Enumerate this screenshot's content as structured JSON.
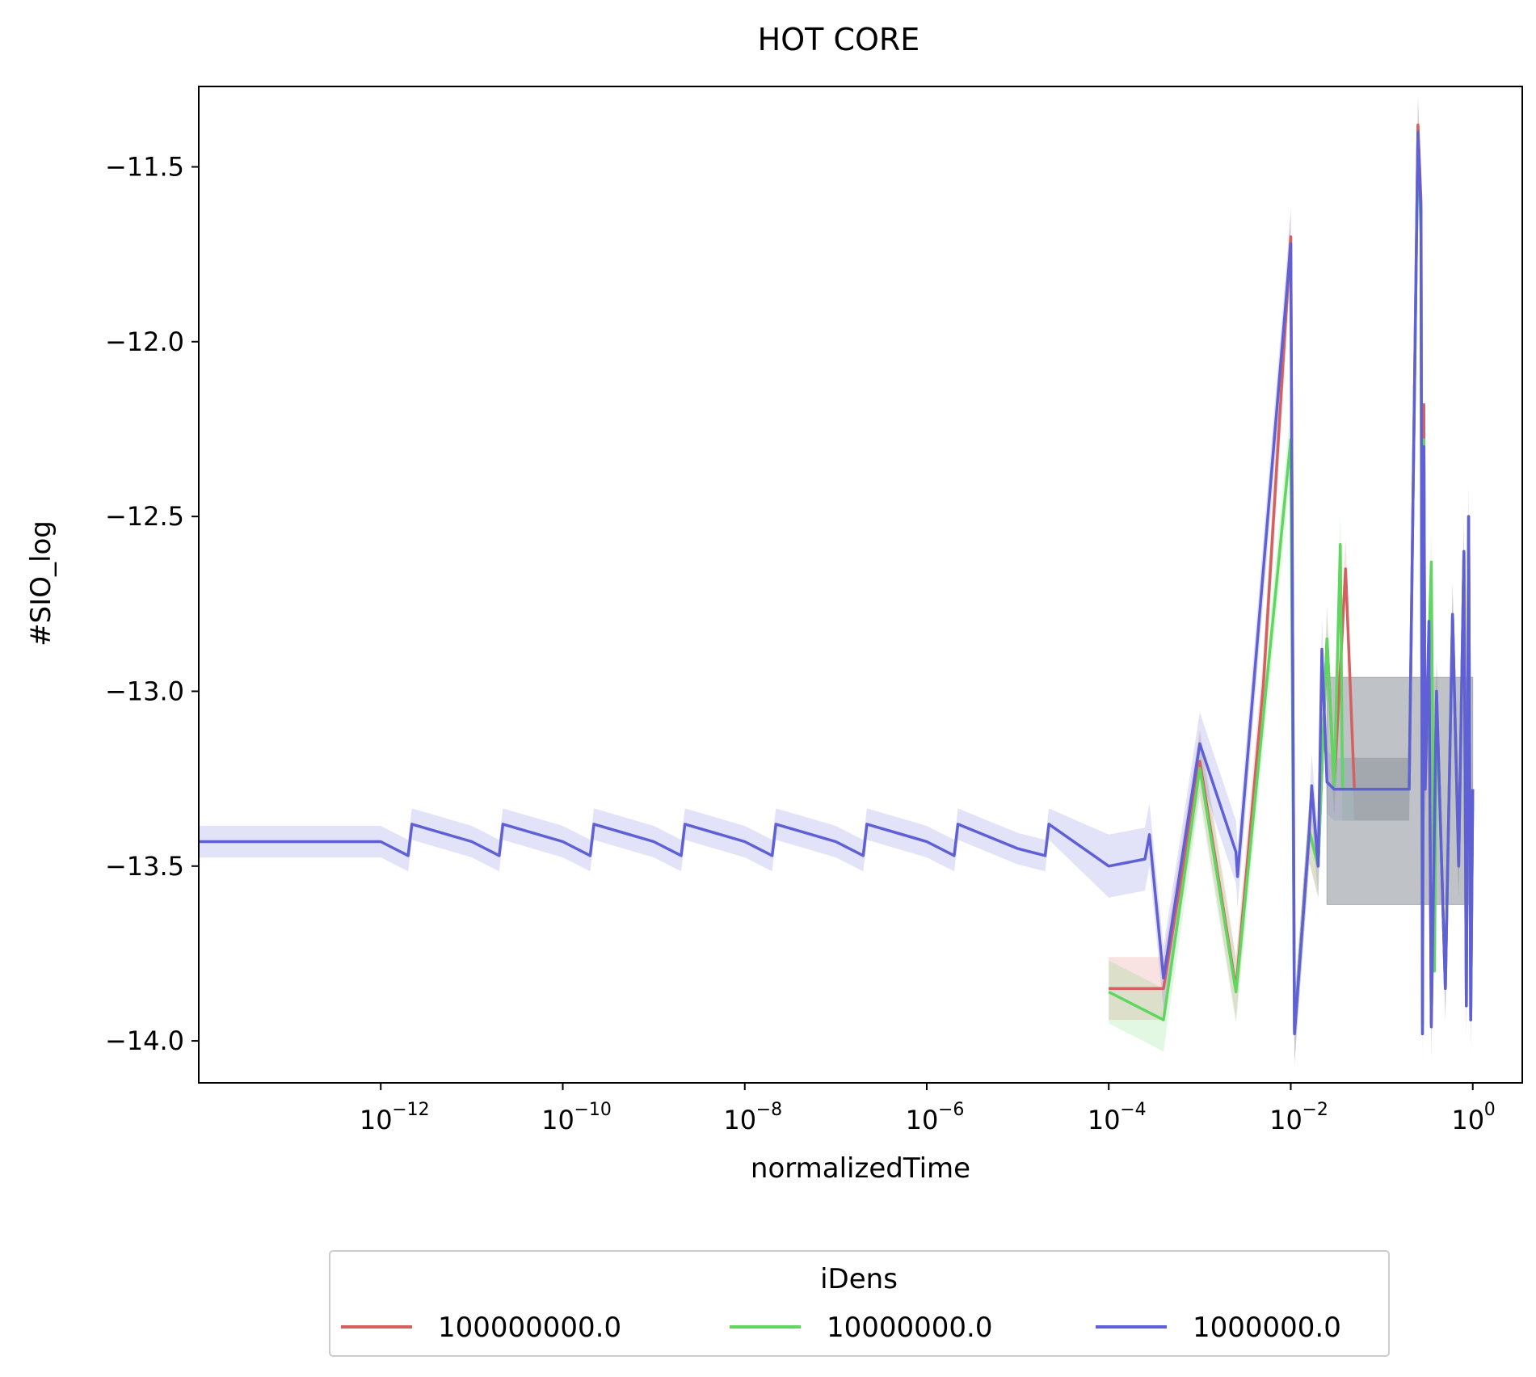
{
  "chart_data": {
    "type": "line",
    "title": "HOT CORE",
    "xlabel": "normalizedTime",
    "ylabel": "#SIO_log",
    "xscale": "log",
    "xlim": [
      1e-14,
      3.5
    ],
    "ylim": [
      -14.12,
      -11.27
    ],
    "xticks": [
      {
        "value": 1e-12,
        "base": "10",
        "exp": "−12"
      },
      {
        "value": 1e-10,
        "base": "10",
        "exp": "−10"
      },
      {
        "value": 1e-08,
        "base": "10",
        "exp": "−8"
      },
      {
        "value": 1e-06,
        "base": "10",
        "exp": "−6"
      },
      {
        "value": 0.0001,
        "base": "10",
        "exp": "−4"
      },
      {
        "value": 0.01,
        "base": "10",
        "exp": "−2"
      },
      {
        "value": 1,
        "base": "10",
        "exp": "0"
      }
    ],
    "yticks": [
      {
        "value": -11.5,
        "label": "−11.5"
      },
      {
        "value": -12.0,
        "label": "−12.0"
      },
      {
        "value": -12.5,
        "label": "−12.5"
      },
      {
        "value": -13.0,
        "label": "−13.0"
      },
      {
        "value": -13.5,
        "label": "−13.5"
      },
      {
        "value": -14.0,
        "label": "−14.0"
      }
    ],
    "grid": false,
    "legend": {
      "title": "iDens",
      "placement": "bottom-center"
    },
    "series": [
      {
        "name": "100000000.0",
        "color": "#d65f5f",
        "x": [
          0.0001,
          0.0004,
          0.001,
          0.0025,
          0.005,
          0.01,
          0.011,
          0.016,
          0.02,
          0.025,
          0.03,
          0.04,
          0.05,
          0.1,
          0.2,
          0.25,
          0.27,
          0.28,
          0.29,
          0.3,
          0.33,
          0.35,
          0.4,
          0.5,
          0.6,
          0.7,
          0.8,
          0.85,
          0.9,
          0.95,
          1.0
        ],
        "y": [
          -13.85,
          -13.85,
          -13.2,
          -13.85,
          -12.98,
          -11.7,
          -13.97,
          -13.4,
          -13.5,
          -12.85,
          -13.27,
          -12.65,
          -13.28,
          -13.28,
          -13.28,
          -11.38,
          -11.6,
          -13.95,
          -12.18,
          -13.28,
          -12.9,
          -13.95,
          -13.0,
          -13.85,
          -12.78,
          -13.5,
          -12.6,
          -13.9,
          -12.5,
          -13.94,
          -13.28
        ]
      },
      {
        "name": "10000000.0",
        "color": "#5fd65f",
        "x": [
          0.0001,
          0.0004,
          0.001,
          0.0025,
          0.01,
          0.011,
          0.016,
          0.02,
          0.025,
          0.03,
          0.035,
          0.037,
          0.05,
          0.1,
          0.2,
          0.25,
          0.27,
          0.28,
          0.29,
          0.3,
          0.35,
          0.38,
          0.4,
          0.5,
          0.6,
          0.7,
          0.8,
          0.85,
          0.9,
          0.95,
          1.0
        ],
        "y": [
          -13.86,
          -13.94,
          -13.22,
          -13.86,
          -12.28,
          -13.97,
          -13.4,
          -13.5,
          -12.85,
          -13.27,
          -12.58,
          -13.28,
          -13.28,
          -13.28,
          -13.28,
          -11.4,
          -11.7,
          -13.98,
          -12.28,
          -13.28,
          -12.63,
          -13.8,
          -13.0,
          -13.85,
          -12.78,
          -13.5,
          -12.6,
          -13.9,
          -12.5,
          -13.93,
          -13.3
        ]
      },
      {
        "name": "1000000.0",
        "color": "#5f5fd6",
        "x": [
          1e-14,
          1e-12,
          2e-12,
          2.2e-12,
          1e-11,
          2e-11,
          2.2e-11,
          1e-10,
          2e-10,
          2.2e-10,
          1e-09,
          2e-09,
          2.2e-09,
          1e-08,
          2e-08,
          2.2e-08,
          1e-07,
          2e-07,
          2.2e-07,
          1e-06,
          2e-06,
          2.2e-06,
          1e-05,
          2e-05,
          2.2e-05,
          0.0001,
          0.00025,
          0.00028,
          0.0004,
          0.001,
          0.0025,
          0.0026,
          0.01,
          0.011,
          0.016,
          0.017,
          0.02,
          0.022,
          0.025,
          0.03,
          0.05,
          0.1,
          0.2,
          0.25,
          0.27,
          0.28,
          0.29,
          0.3,
          0.33,
          0.35,
          0.4,
          0.5,
          0.6,
          0.7,
          0.8,
          0.85,
          0.9,
          0.95,
          1.0
        ],
        "y": [
          -13.43,
          -13.43,
          -13.47,
          -13.38,
          -13.43,
          -13.47,
          -13.38,
          -13.43,
          -13.47,
          -13.38,
          -13.43,
          -13.47,
          -13.38,
          -13.43,
          -13.47,
          -13.38,
          -13.43,
          -13.47,
          -13.38,
          -13.43,
          -13.47,
          -13.38,
          -13.45,
          -13.47,
          -13.38,
          -13.5,
          -13.48,
          -13.41,
          -13.82,
          -13.15,
          -13.46,
          -13.53,
          -11.72,
          -13.98,
          -13.4,
          -13.27,
          -13.5,
          -12.88,
          -13.26,
          -13.28,
          -13.28,
          -13.28,
          -13.28,
          -11.4,
          -11.63,
          -13.98,
          -12.3,
          -13.28,
          -12.8,
          -13.96,
          -13.0,
          -13.85,
          -12.78,
          -13.5,
          -12.6,
          -13.9,
          -12.5,
          -13.94,
          -13.28
        ]
      }
    ]
  }
}
